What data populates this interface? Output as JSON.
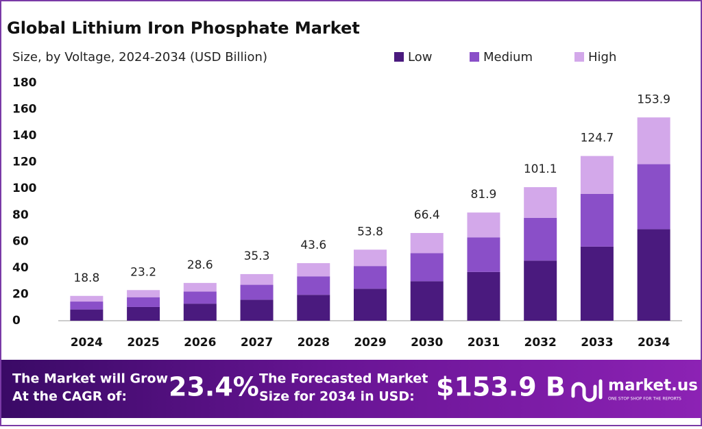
{
  "chart_data": {
    "type": "stacked_bar",
    "title": "Global Lithium Iron Phosphate Market",
    "subtitle": "Size, by Voltage, 2024-2034 (USD Billion)",
    "categories": [
      "2024",
      "2025",
      "2026",
      "2027",
      "2028",
      "2029",
      "2030",
      "2031",
      "2032",
      "2033",
      "2034"
    ],
    "series": [
      {
        "name": "Low",
        "color": "#4a1a7e",
        "values": [
          8.5,
          10.4,
          12.9,
          15.9,
          19.6,
          24.2,
          29.9,
          36.9,
          45.5,
          56.1,
          69.3
        ]
      },
      {
        "name": "Medium",
        "color": "#8a4fc8",
        "values": [
          6.0,
          7.4,
          9.2,
          11.3,
          14.0,
          17.2,
          21.2,
          26.2,
          32.4,
          39.9,
          49.2
        ]
      },
      {
        "name": "High",
        "color": "#d3a8ea",
        "values": [
          4.3,
          5.4,
          6.5,
          8.1,
          10.0,
          12.4,
          15.3,
          18.8,
          23.2,
          28.7,
          35.4
        ]
      }
    ],
    "totals": [
      18.8,
      23.2,
      28.6,
      35.3,
      43.6,
      53.8,
      66.4,
      81.9,
      101.1,
      124.7,
      153.9
    ],
    "ylim": [
      0,
      180
    ],
    "yticks": [
      0,
      20,
      40,
      60,
      80,
      100,
      120,
      140,
      160,
      180
    ],
    "grid": false
  },
  "banner": {
    "cagr_label": [
      "The Market will Grow",
      "At the CAGR of:"
    ],
    "cagr": "23.4%",
    "forecast_label": [
      "The Forecasted Market",
      "Size for 2034 in USD:"
    ],
    "forecast": "$153.9 B",
    "logo": "market.us",
    "tagline": "ONE STOP SHOP FOR THE REPORTS"
  }
}
